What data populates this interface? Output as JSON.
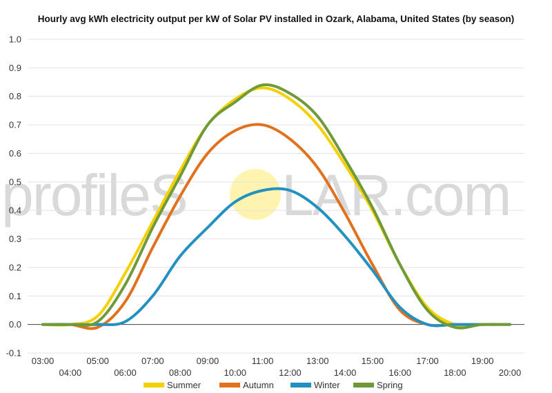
{
  "watermark": {
    "left": "profileS",
    "right": "LAR.com"
  },
  "colors": {
    "sun": "#fff3b0",
    "grid": "#e2e2e2",
    "axis": "#444444"
  },
  "chart_data": {
    "type": "line",
    "title": "Hourly avg kWh electricity output per kW of Solar PV installed in Ozark, Alabama, United States (by season)",
    "x": [
      "03:00",
      "04:00",
      "05:00",
      "06:00",
      "07:00",
      "08:00",
      "09:00",
      "10:00",
      "11:00",
      "12:00",
      "13:00",
      "14:00",
      "15:00",
      "16:00",
      "17:00",
      "18:00",
      "19:00",
      "20:00"
    ],
    "x_tick_labels_row1": [
      "03:00",
      "05:00",
      "07:00",
      "09:00",
      "11:00",
      "13:00",
      "15:00",
      "17:00",
      "19:00"
    ],
    "x_tick_labels_row2": [
      "04:00",
      "06:00",
      "08:00",
      "10:00",
      "12:00",
      "14:00",
      "16:00",
      "18:00",
      "20:00"
    ],
    "ylim": [
      -0.1,
      1.0
    ],
    "y_ticks": [
      "-0.1",
      "0.0",
      "0.1",
      "0.2",
      "0.3",
      "0.4",
      "0.5",
      "0.6",
      "0.7",
      "0.8",
      "0.9",
      "1.0"
    ],
    "legend_position": "bottom",
    "series": [
      {
        "name": "Summer",
        "color": "#f5d000",
        "values": [
          0.0,
          0.0,
          0.03,
          0.18,
          0.36,
          0.54,
          0.7,
          0.79,
          0.83,
          0.79,
          0.7,
          0.56,
          0.4,
          0.21,
          0.06,
          0.0,
          0.0,
          0.0
        ]
      },
      {
        "name": "Autumn",
        "color": "#e2711d",
        "values": [
          0.0,
          0.0,
          -0.01,
          0.08,
          0.27,
          0.45,
          0.6,
          0.68,
          0.7,
          0.65,
          0.55,
          0.39,
          0.21,
          0.05,
          0.0,
          0.0,
          0.0,
          0.0
        ]
      },
      {
        "name": "Winter",
        "color": "#2290c0",
        "values": [
          0.0,
          0.0,
          0.0,
          0.01,
          0.1,
          0.24,
          0.34,
          0.43,
          0.47,
          0.47,
          0.41,
          0.31,
          0.19,
          0.06,
          0.0,
          0.0,
          0.0,
          0.0
        ]
      },
      {
        "name": "Spring",
        "color": "#6f9a3a",
        "values": [
          0.0,
          0.0,
          0.01,
          0.14,
          0.34,
          0.52,
          0.7,
          0.78,
          0.84,
          0.81,
          0.73,
          0.58,
          0.41,
          0.21,
          0.05,
          -0.01,
          0.0,
          0.0
        ]
      }
    ]
  }
}
